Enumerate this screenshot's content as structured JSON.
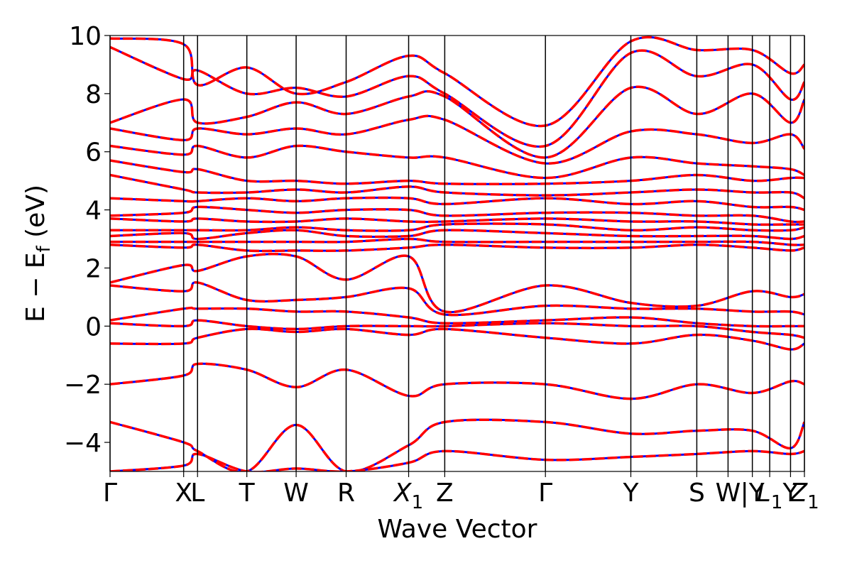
{
  "chart_data": {
    "type": "line",
    "title": "",
    "xlabel": "Wave Vector",
    "ylabel": "E − E",
    "ylabel_subscript": "f",
    "ylabel_unit": "(eV)",
    "ylim": [
      -5,
      10
    ],
    "y_ticks": [
      -4,
      -2,
      0,
      2,
      4,
      6,
      8,
      10
    ],
    "y_tick_labels": [
      "−4",
      "−2",
      "0",
      "2",
      "4",
      "6",
      "8",
      "10"
    ],
    "high_symmetry_points": [
      {
        "label": "Γ",
        "x": 0.0
      },
      {
        "label": "X",
        "x": 0.106
      },
      {
        "label": "L",
        "x": 0.126
      },
      {
        "label": "T",
        "x": 0.197
      },
      {
        "label": "W",
        "x": 0.268
      },
      {
        "label": "R",
        "x": 0.34
      },
      {
        "label": "X",
        "subscript": "1",
        "x": 0.43
      },
      {
        "label": "Z",
        "x": 0.482
      },
      {
        "label": "Γ",
        "x": 0.627
      },
      {
        "label": "Y",
        "x": 0.75
      },
      {
        "label": "S",
        "x": 0.845
      },
      {
        "label": "W",
        "x": 0.89
      },
      {
        "label": "|Y",
        "x": 0.925
      },
      {
        "label": "L",
        "subscript": "1",
        "x": 0.95
      },
      {
        "label": "Y",
        "x": 0.98
      },
      {
        "label": "Z",
        "subscript": "1",
        "x": 1.0
      }
    ],
    "band_segments_x": [
      0.0,
      0.106,
      0.126,
      0.197,
      0.268,
      0.34,
      0.43,
      0.482,
      0.627,
      0.75,
      0.845,
      0.925,
      0.98,
      1.0
    ],
    "series": [
      {
        "color": "#0000ff",
        "style": "solid"
      },
      {
        "color": "#ff0000",
        "style": "dashed"
      }
    ],
    "bands": [
      [
        9.9,
        9.7,
        8.3,
        8.9,
        8.0,
        8.4,
        9.3,
        8.7,
        6.9,
        9.8,
        9.5,
        9.5,
        8.7,
        9.0
      ],
      [
        9.6,
        8.5,
        8.8,
        8.0,
        8.2,
        7.9,
        8.6,
        8.0,
        6.2,
        9.4,
        8.6,
        9.0,
        7.8,
        8.4
      ],
      [
        7.0,
        7.8,
        7.0,
        7.2,
        7.7,
        7.3,
        7.9,
        7.9,
        5.8,
        8.2,
        7.3,
        8.0,
        7.0,
        7.8
      ],
      [
        6.8,
        6.4,
        6.8,
        6.6,
        6.8,
        6.6,
        7.1,
        7.1,
        5.6,
        6.7,
        6.6,
        6.3,
        6.6,
        6.1
      ],
      [
        6.2,
        5.9,
        6.2,
        5.8,
        6.2,
        6.0,
        5.8,
        5.8,
        5.1,
        5.8,
        5.6,
        5.5,
        5.4,
        5.2
      ],
      [
        5.7,
        5.3,
        5.4,
        5.0,
        5.0,
        4.9,
        5.0,
        4.9,
        4.9,
        5.0,
        5.2,
        5.0,
        5.1,
        5.1
      ],
      [
        5.2,
        4.7,
        4.6,
        4.6,
        4.7,
        4.6,
        4.8,
        4.6,
        4.5,
        4.6,
        4.7,
        4.6,
        4.6,
        4.4
      ],
      [
        4.4,
        4.3,
        4.3,
        4.4,
        4.3,
        4.4,
        4.4,
        4.2,
        4.4,
        4.2,
        4.3,
        4.1,
        4.1,
        4.0
      ],
      [
        3.8,
        3.9,
        4.1,
        4.0,
        3.9,
        4.0,
        4.0,
        3.8,
        3.9,
        3.9,
        3.8,
        3.8,
        3.6,
        3.6
      ],
      [
        3.7,
        3.6,
        3.7,
        3.6,
        3.6,
        3.7,
        3.6,
        3.6,
        3.7,
        3.6,
        3.6,
        3.5,
        3.5,
        3.5
      ],
      [
        3.3,
        3.3,
        3.3,
        3.3,
        3.4,
        3.3,
        3.3,
        3.5,
        3.5,
        3.3,
        3.4,
        3.3,
        3.3,
        3.4
      ],
      [
        3.1,
        3.2,
        3.0,
        3.2,
        3.3,
        3.1,
        3.1,
        3.3,
        3.2,
        3.1,
        3.1,
        3.1,
        3.0,
        3.1
      ],
      [
        2.9,
        2.9,
        2.9,
        2.9,
        2.9,
        2.9,
        3.0,
        2.9,
        2.9,
        2.9,
        2.9,
        2.9,
        2.8,
        2.8
      ],
      [
        2.8,
        2.7,
        2.8,
        2.6,
        2.6,
        2.6,
        2.7,
        2.8,
        2.7,
        2.7,
        2.8,
        2.7,
        2.6,
        2.7
      ],
      [
        1.5,
        2.1,
        1.9,
        2.4,
        2.4,
        1.6,
        2.4,
        0.5,
        1.4,
        0.8,
        0.7,
        1.2,
        1.0,
        1.1
      ],
      [
        1.4,
        1.2,
        1.5,
        0.9,
        0.9,
        1.0,
        1.3,
        0.4,
        0.7,
        0.6,
        0.6,
        0.5,
        0.5,
        0.4
      ],
      [
        0.2,
        0.6,
        0.6,
        0.6,
        0.5,
        0.5,
        0.3,
        0.1,
        0.2,
        0.3,
        0.1,
        0.0,
        0.0,
        0.0
      ],
      [
        0.1,
        0.0,
        0.2,
        0.0,
        -0.1,
        0.0,
        0.0,
        0.0,
        0.1,
        0.0,
        0.0,
        -0.2,
        -0.3,
        -0.4
      ],
      [
        -0.6,
        -0.6,
        -0.4,
        -0.1,
        -0.2,
        -0.1,
        -0.3,
        -0.1,
        -0.4,
        -0.6,
        -0.3,
        -0.5,
        -0.8,
        -0.6
      ],
      [
        -2.0,
        -1.7,
        -1.3,
        -1.5,
        -2.1,
        -1.5,
        -2.4,
        -2.0,
        -2.0,
        -2.5,
        -2.0,
        -2.3,
        -1.9,
        -2.0
      ],
      [
        -3.3,
        -4.0,
        -4.3,
        -5.0,
        -3.4,
        -5.0,
        -4.1,
        -3.3,
        -3.3,
        -3.7,
        -3.6,
        -3.6,
        -4.2,
        -3.3
      ],
      [
        -5.0,
        -4.8,
        -4.4,
        -5.0,
        -4.9,
        -5.0,
        -4.7,
        -4.3,
        -4.6,
        -4.5,
        -4.4,
        -4.3,
        -4.4,
        -4.3
      ]
    ]
  }
}
